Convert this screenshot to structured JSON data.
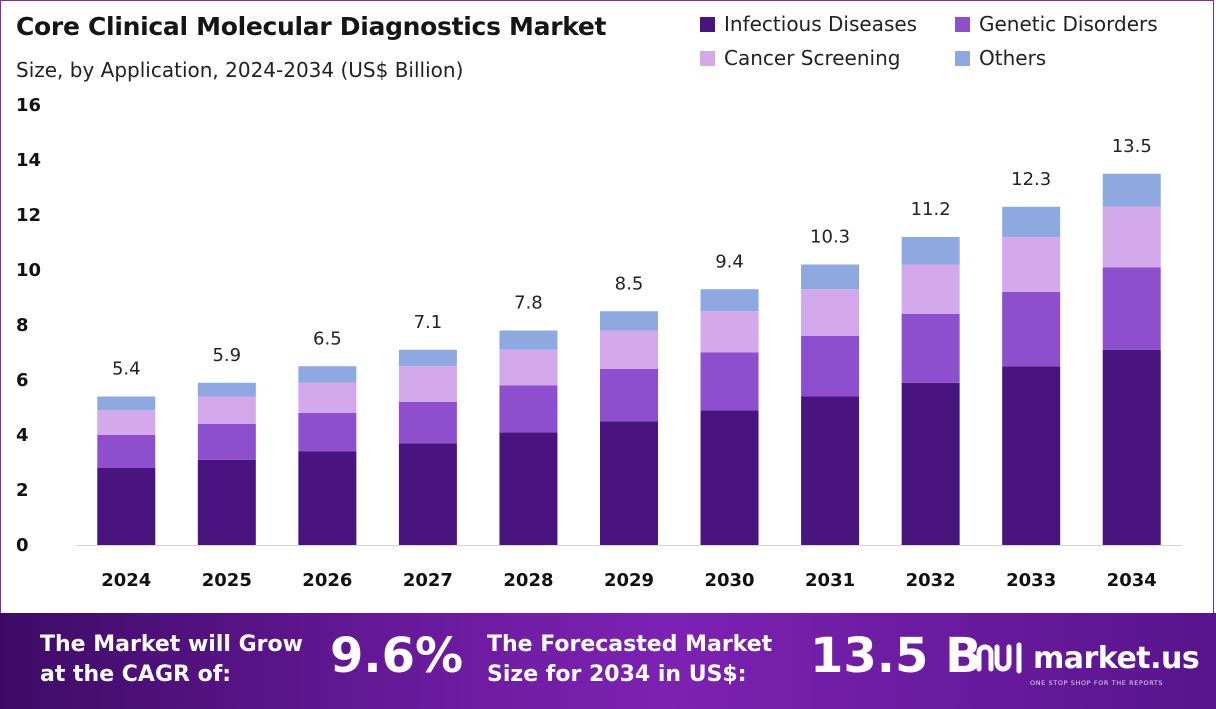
{
  "title": "Core Clinical Molecular Diagnostics Market",
  "subtitle": "Size, by Application, 2024-2034 (US$ Billion)",
  "legend": [
    {
      "name": "Infectious Diseases",
      "color": "#4a1480"
    },
    {
      "name": "Genetic Disorders",
      "color": "#8e4fce"
    },
    {
      "name": "Cancer Screening",
      "color": "#d3a9ec"
    },
    {
      "name": "Others",
      "color": "#8ea9e0"
    }
  ],
  "chart_data": {
    "type": "bar",
    "stacked": true,
    "categories": [
      "2024",
      "2025",
      "2026",
      "2027",
      "2028",
      "2029",
      "2030",
      "2031",
      "2032",
      "2033",
      "2034"
    ],
    "series": [
      {
        "name": "Infectious Diseases",
        "color": "#4a1480",
        "values": [
          2.8,
          3.1,
          3.4,
          3.7,
          4.1,
          4.5,
          4.9,
          5.4,
          5.9,
          6.5,
          7.1
        ]
      },
      {
        "name": "Genetic Disorders",
        "color": "#8e4fce",
        "values": [
          1.2,
          1.3,
          1.4,
          1.5,
          1.7,
          1.9,
          2.1,
          2.2,
          2.5,
          2.7,
          3.0
        ]
      },
      {
        "name": "Cancer Screening",
        "color": "#d3a9ec",
        "values": [
          0.9,
          1.0,
          1.1,
          1.3,
          1.3,
          1.4,
          1.5,
          1.7,
          1.8,
          2.0,
          2.2
        ]
      },
      {
        "name": "Others",
        "color": "#8ea9e0",
        "values": [
          0.5,
          0.5,
          0.6,
          0.6,
          0.7,
          0.7,
          0.8,
          0.9,
          1.0,
          1.1,
          1.2
        ]
      }
    ],
    "totals": [
      "5.4",
      "5.9",
      "6.5",
      "7.1",
      "7.8",
      "8.5",
      "9.4",
      "10.3",
      "11.2",
      "12.3",
      "13.5"
    ],
    "yticks": [
      0,
      2,
      4,
      6,
      8,
      10,
      12,
      14,
      16
    ],
    "ylim": [
      0,
      16
    ],
    "grid": false,
    "legend_position": "top-right"
  },
  "footer": {
    "cagr_label_line1": "The Market will Grow",
    "cagr_label_line2": "at the CAGR of:",
    "cagr_value": "9.6%",
    "forecast_label_line1": "The Forecasted Market",
    "forecast_label_line2": "Size for 2034 in US$:",
    "forecast_value": "13.5 B",
    "brand_name": "market.us",
    "brand_tagline": "ONE STOP SHOP FOR THE REPORTS"
  }
}
